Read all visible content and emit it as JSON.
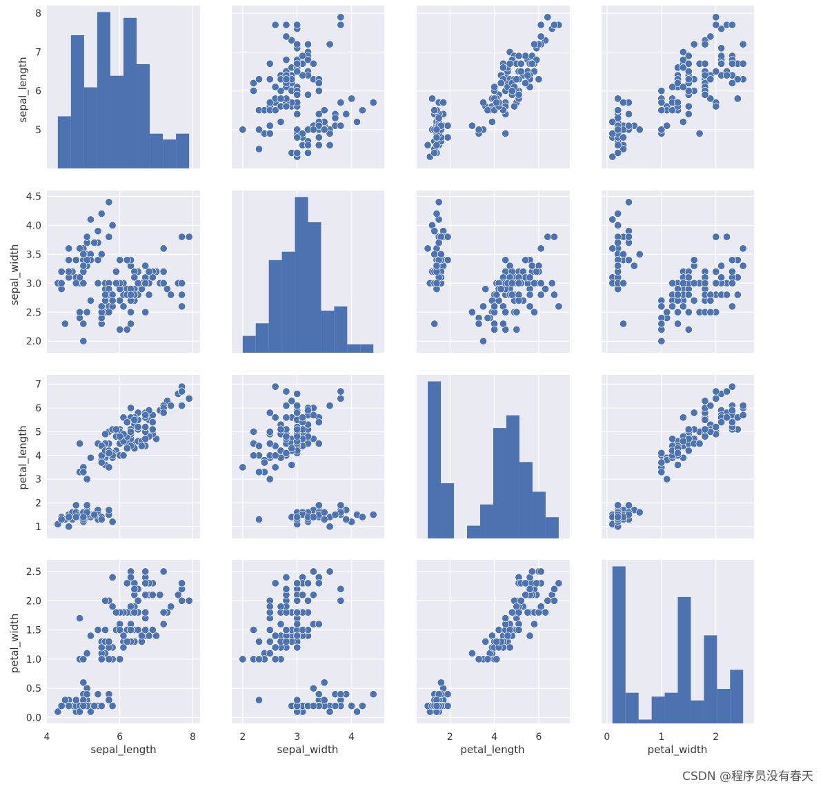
{
  "figure": {
    "watermark": "CSDN @程序员没有春天",
    "panel_bg": "#e9eaf2",
    "grid_color": "#ffffff",
    "mark_color": "#4c72b0",
    "text_color": "#333333"
  },
  "chart_data": {
    "type": "scatter",
    "kind": "pairplot",
    "variables": [
      "sepal_length",
      "sepal_width",
      "petal_length",
      "petal_width"
    ],
    "axes": {
      "sepal_length": {
        "label": "sepal_length",
        "lim": [
          4.0,
          8.2
        ],
        "ticks": [
          4,
          6,
          8
        ],
        "ytick_labels": [
          "5",
          "6",
          "7",
          "8"
        ],
        "yticks": [
          5,
          6,
          7,
          8
        ],
        "xticks": [
          4,
          6,
          8
        ]
      },
      "sepal_width": {
        "label": "sepal_width",
        "lim": [
          1.8,
          4.6
        ],
        "xticks": [
          2,
          3,
          4
        ],
        "yticks": [
          2.0,
          2.5,
          3.0,
          3.5,
          4.0,
          4.5
        ],
        "ytick_labels": [
          "2.0",
          "2.5",
          "3.0",
          "3.5",
          "4.0",
          "4.5"
        ]
      },
      "petal_length": {
        "label": "petal_length",
        "lim": [
          0.5,
          7.4
        ],
        "xticks": [
          2,
          4,
          6
        ],
        "yticks": [
          1,
          2,
          3,
          4,
          5,
          6,
          7
        ],
        "ytick_labels": [
          "1",
          "2",
          "3",
          "4",
          "5",
          "6",
          "7"
        ]
      },
      "petal_width": {
        "label": "petal_width",
        "lim": [
          -0.1,
          2.7
        ],
        "xticks": [
          0,
          1,
          2
        ],
        "yticks": [
          0.0,
          0.5,
          1.0,
          1.5,
          2.0,
          2.5
        ],
        "ytick_labels": [
          "0.0",
          "0.5",
          "1.0",
          "1.5",
          "2.0",
          "2.5"
        ]
      }
    },
    "xtick_labels": {
      "sepal_length": [
        "4",
        "6",
        "8"
      ],
      "sepal_width": [
        "2",
        "3",
        "4"
      ],
      "petal_length": [
        "2",
        "4",
        "6"
      ],
      "petal_width": [
        "0",
        "1",
        "2"
      ]
    },
    "histograms": {
      "sepal_length": {
        "counts": [
          9,
          23,
          14,
          27,
          16,
          26,
          18,
          6,
          5,
          6
        ],
        "range": [
          4.3,
          7.9
        ]
      },
      "sepal_width": {
        "counts": [
          4,
          7,
          22,
          24,
          37,
          31,
          10,
          11,
          2,
          2
        ],
        "range": [
          2.0,
          4.4
        ]
      },
      "petal_length": {
        "counts": [
          37,
          13,
          0,
          3,
          8,
          26,
          29,
          18,
          11,
          5
        ],
        "range": [
          1.0,
          6.9
        ]
      },
      "petal_width": {
        "counts": [
          41,
          8,
          1,
          7,
          8,
          33,
          6,
          23,
          9,
          14
        ],
        "range": [
          0.1,
          2.5
        ]
      }
    },
    "observations": [
      [
        5.1,
        3.5,
        1.4,
        0.2
      ],
      [
        4.9,
        3.0,
        1.4,
        0.2
      ],
      [
        4.7,
        3.2,
        1.3,
        0.2
      ],
      [
        4.6,
        3.1,
        1.5,
        0.2
      ],
      [
        5.0,
        3.6,
        1.4,
        0.2
      ],
      [
        5.4,
        3.9,
        1.7,
        0.4
      ],
      [
        4.6,
        3.4,
        1.4,
        0.3
      ],
      [
        5.0,
        3.4,
        1.5,
        0.2
      ],
      [
        4.4,
        2.9,
        1.4,
        0.2
      ],
      [
        4.9,
        3.1,
        1.5,
        0.1
      ],
      [
        5.4,
        3.7,
        1.5,
        0.2
      ],
      [
        4.8,
        3.4,
        1.6,
        0.2
      ],
      [
        4.8,
        3.0,
        1.4,
        0.1
      ],
      [
        4.3,
        3.0,
        1.1,
        0.1
      ],
      [
        5.8,
        4.0,
        1.2,
        0.2
      ],
      [
        5.7,
        4.4,
        1.5,
        0.4
      ],
      [
        5.4,
        3.9,
        1.3,
        0.4
      ],
      [
        5.1,
        3.5,
        1.4,
        0.3
      ],
      [
        5.7,
        3.8,
        1.7,
        0.3
      ],
      [
        5.1,
        3.8,
        1.5,
        0.3
      ],
      [
        5.4,
        3.4,
        1.7,
        0.2
      ],
      [
        5.1,
        3.7,
        1.5,
        0.4
      ],
      [
        4.6,
        3.6,
        1.0,
        0.2
      ],
      [
        5.1,
        3.3,
        1.7,
        0.5
      ],
      [
        4.8,
        3.4,
        1.9,
        0.2
      ],
      [
        5.0,
        3.0,
        1.6,
        0.2
      ],
      [
        5.0,
        3.4,
        1.6,
        0.4
      ],
      [
        5.2,
        3.5,
        1.5,
        0.2
      ],
      [
        5.2,
        3.4,
        1.4,
        0.2
      ],
      [
        4.7,
        3.2,
        1.6,
        0.2
      ],
      [
        4.8,
        3.1,
        1.6,
        0.2
      ],
      [
        5.4,
        3.4,
        1.5,
        0.4
      ],
      [
        5.2,
        4.1,
        1.5,
        0.1
      ],
      [
        5.5,
        4.2,
        1.4,
        0.2
      ],
      [
        4.9,
        3.1,
        1.5,
        0.2
      ],
      [
        5.0,
        3.2,
        1.2,
        0.2
      ],
      [
        5.5,
        3.5,
        1.3,
        0.2
      ],
      [
        4.9,
        3.6,
        1.4,
        0.1
      ],
      [
        4.4,
        3.0,
        1.3,
        0.2
      ],
      [
        5.1,
        3.4,
        1.5,
        0.2
      ],
      [
        5.0,
        3.5,
        1.3,
        0.3
      ],
      [
        4.5,
        2.3,
        1.3,
        0.3
      ],
      [
        4.4,
        3.2,
        1.3,
        0.2
      ],
      [
        5.0,
        3.5,
        1.6,
        0.6
      ],
      [
        5.1,
        3.8,
        1.9,
        0.4
      ],
      [
        4.8,
        3.0,
        1.4,
        0.3
      ],
      [
        5.1,
        3.8,
        1.6,
        0.2
      ],
      [
        4.6,
        3.2,
        1.4,
        0.2
      ],
      [
        5.3,
        3.7,
        1.5,
        0.2
      ],
      [
        5.0,
        3.3,
        1.4,
        0.2
      ],
      [
        7.0,
        3.2,
        4.7,
        1.4
      ],
      [
        6.4,
        3.2,
        4.5,
        1.5
      ],
      [
        6.9,
        3.1,
        4.9,
        1.5
      ],
      [
        5.5,
        2.3,
        4.0,
        1.3
      ],
      [
        6.5,
        2.8,
        4.6,
        1.5
      ],
      [
        5.7,
        2.8,
        4.5,
        1.3
      ],
      [
        6.3,
        3.3,
        4.7,
        1.6
      ],
      [
        4.9,
        2.4,
        3.3,
        1.0
      ],
      [
        6.6,
        2.9,
        4.6,
        1.3
      ],
      [
        5.2,
        2.7,
        3.9,
        1.4
      ],
      [
        5.0,
        2.0,
        3.5,
        1.0
      ],
      [
        5.9,
        3.0,
        4.2,
        1.5
      ],
      [
        6.0,
        2.2,
        4.0,
        1.0
      ],
      [
        6.1,
        2.9,
        4.7,
        1.4
      ],
      [
        5.6,
        2.9,
        3.6,
        1.3
      ],
      [
        6.7,
        3.1,
        4.4,
        1.4
      ],
      [
        5.6,
        3.0,
        4.5,
        1.5
      ],
      [
        5.8,
        2.7,
        4.1,
        1.0
      ],
      [
        6.2,
        2.2,
        4.5,
        1.5
      ],
      [
        5.6,
        2.5,
        3.9,
        1.1
      ],
      [
        5.9,
        3.2,
        4.8,
        1.8
      ],
      [
        6.1,
        2.8,
        4.0,
        1.3
      ],
      [
        6.3,
        2.5,
        4.9,
        1.5
      ],
      [
        6.1,
        2.8,
        4.7,
        1.2
      ],
      [
        6.4,
        2.9,
        4.3,
        1.3
      ],
      [
        6.6,
        3.0,
        4.4,
        1.4
      ],
      [
        6.8,
        2.8,
        4.8,
        1.4
      ],
      [
        6.7,
        3.0,
        5.0,
        1.7
      ],
      [
        6.0,
        2.9,
        4.5,
        1.5
      ],
      [
        5.7,
        2.6,
        3.5,
        1.0
      ],
      [
        5.5,
        2.4,
        3.8,
        1.1
      ],
      [
        5.5,
        2.4,
        3.7,
        1.0
      ],
      [
        5.8,
        2.7,
        3.9,
        1.2
      ],
      [
        6.0,
        2.7,
        5.1,
        1.6
      ],
      [
        5.4,
        3.0,
        4.5,
        1.5
      ],
      [
        6.0,
        3.4,
        4.5,
        1.6
      ],
      [
        6.7,
        3.1,
        4.7,
        1.5
      ],
      [
        6.3,
        2.3,
        4.4,
        1.3
      ],
      [
        5.6,
        3.0,
        4.1,
        1.3
      ],
      [
        5.5,
        2.5,
        4.0,
        1.3
      ],
      [
        5.5,
        2.6,
        4.4,
        1.2
      ],
      [
        6.1,
        3.0,
        4.6,
        1.4
      ],
      [
        5.8,
        2.6,
        4.0,
        1.2
      ],
      [
        5.0,
        2.3,
        3.3,
        1.0
      ],
      [
        5.6,
        2.7,
        4.2,
        1.3
      ],
      [
        5.7,
        3.0,
        4.2,
        1.2
      ],
      [
        5.7,
        2.9,
        4.2,
        1.3
      ],
      [
        6.2,
        2.9,
        4.3,
        1.3
      ],
      [
        5.1,
        2.5,
        3.0,
        1.1
      ],
      [
        5.7,
        2.8,
        4.1,
        1.3
      ],
      [
        6.3,
        3.3,
        6.0,
        2.5
      ],
      [
        5.8,
        2.7,
        5.1,
        1.9
      ],
      [
        7.1,
        3.0,
        5.9,
        2.1
      ],
      [
        6.3,
        2.9,
        5.6,
        1.8
      ],
      [
        6.5,
        3.0,
        5.8,
        2.2
      ],
      [
        7.6,
        3.0,
        6.6,
        2.1
      ],
      [
        4.9,
        2.5,
        4.5,
        1.7
      ],
      [
        7.3,
        2.9,
        6.3,
        1.8
      ],
      [
        6.7,
        2.5,
        5.8,
        1.8
      ],
      [
        7.2,
        3.6,
        6.1,
        2.5
      ],
      [
        6.5,
        3.2,
        5.1,
        2.0
      ],
      [
        6.4,
        2.7,
        5.3,
        1.9
      ],
      [
        6.8,
        3.0,
        5.5,
        2.1
      ],
      [
        5.7,
        2.5,
        5.0,
        2.0
      ],
      [
        5.8,
        2.8,
        5.1,
        2.4
      ],
      [
        6.4,
        3.2,
        5.3,
        2.3
      ],
      [
        6.5,
        3.0,
        5.5,
        1.8
      ],
      [
        7.7,
        3.8,
        6.7,
        2.2
      ],
      [
        7.7,
        2.6,
        6.9,
        2.3
      ],
      [
        6.0,
        2.2,
        5.0,
        1.5
      ],
      [
        6.9,
        3.2,
        5.7,
        2.3
      ],
      [
        5.6,
        2.8,
        4.9,
        2.0
      ],
      [
        7.7,
        2.8,
        6.7,
        2.0
      ],
      [
        6.3,
        2.7,
        4.9,
        1.8
      ],
      [
        6.7,
        3.3,
        5.7,
        2.1
      ],
      [
        7.2,
        3.2,
        6.0,
        1.8
      ],
      [
        6.2,
        2.8,
        4.8,
        1.8
      ],
      [
        6.1,
        3.0,
        4.9,
        1.8
      ],
      [
        6.4,
        2.8,
        5.6,
        2.1
      ],
      [
        7.2,
        3.0,
        5.8,
        1.6
      ],
      [
        7.4,
        2.8,
        6.1,
        1.9
      ],
      [
        7.9,
        3.8,
        6.4,
        2.0
      ],
      [
        6.4,
        2.8,
        5.6,
        2.2
      ],
      [
        6.3,
        2.8,
        5.1,
        1.5
      ],
      [
        6.1,
        2.6,
        5.6,
        1.4
      ],
      [
        7.7,
        3.0,
        6.1,
        2.3
      ],
      [
        6.3,
        3.4,
        5.6,
        2.4
      ],
      [
        6.4,
        3.1,
        5.5,
        1.8
      ],
      [
        6.0,
        3.0,
        4.8,
        1.8
      ],
      [
        6.9,
        3.1,
        5.4,
        2.1
      ],
      [
        6.7,
        3.1,
        5.6,
        2.4
      ],
      [
        6.9,
        3.1,
        5.1,
        2.3
      ],
      [
        5.8,
        2.7,
        5.1,
        1.9
      ],
      [
        6.8,
        3.2,
        5.9,
        2.3
      ],
      [
        6.7,
        3.3,
        5.7,
        2.5
      ],
      [
        6.7,
        3.0,
        5.2,
        2.3
      ],
      [
        6.3,
        2.5,
        5.0,
        1.9
      ],
      [
        6.5,
        3.0,
        5.2,
        2.0
      ],
      [
        6.2,
        3.4,
        5.4,
        2.3
      ],
      [
        5.9,
        3.0,
        5.1,
        1.8
      ]
    ]
  }
}
